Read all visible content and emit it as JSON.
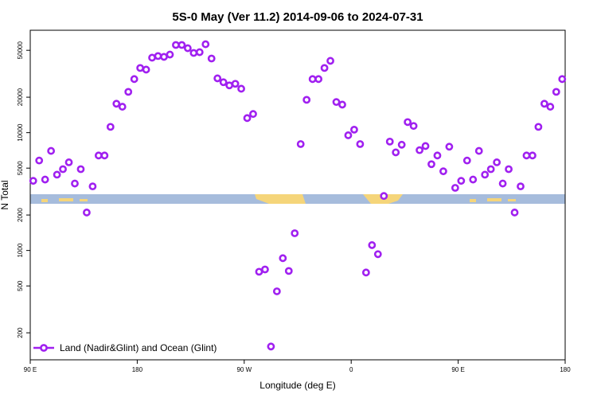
{
  "chart_data": {
    "type": "scatter",
    "title": "5S-0 May (Ver 11.2)   2014-09-06 to 2024-07-31",
    "x_label": "Longitude (deg E)",
    "y_label": "N Total",
    "yscale": "log",
    "legend_position": "bottom left",
    "xlim": [
      90,
      540
    ],
    "ylim": [
      118,
      74000
    ],
    "xticks": [
      {
        "value": 90,
        "label": "90 E"
      },
      180,
      {
        "value": 270,
        "label": "90 W"
      },
      {
        "value": 360,
        "label": "0"
      },
      {
        "value": 450,
        "label": "90 E"
      },
      {
        "value": 540,
        "label": "180"
      }
    ],
    "yticks": [
      200,
      500,
      1000,
      2000,
      5000,
      10000,
      20000,
      50000
    ],
    "series": [
      {
        "name": "Land (Nadir&Glint) and Ocean (Glint)",
        "color": "#a020f0",
        "x": [
          92.5,
          97.5,
          102.5,
          107.5,
          112.5,
          117.5,
          122.5,
          127.5,
          132.5,
          137.5,
          142.5,
          147.5,
          152.5,
          157.5,
          162.5,
          167.5,
          172.5,
          177.5,
          182.5,
          187.5,
          192.5,
          197.5,
          202.5,
          207.5,
          212.5,
          217.5,
          222.5,
          227.5,
          232.5,
          237.5,
          242.5,
          247.5,
          252.5,
          257.5,
          262.5,
          267.5,
          272.5,
          277.5,
          282.5,
          287.5,
          292.5,
          297.5,
          302.5,
          307.5,
          312.5,
          317.5,
          322.5,
          327.5,
          332.5,
          337.5,
          342.5,
          347.5,
          352.5,
          357.5,
          362.5,
          367.5,
          372.5,
          377.5,
          382.5,
          387.5,
          392.5,
          397.5,
          402.5,
          407.5,
          412.5,
          417.5,
          422.5,
          427.5,
          432.5,
          437.5,
          442.5,
          447.5,
          452.5,
          457.5,
          462.5,
          467.5,
          472.5,
          477.5,
          482.5,
          487.5,
          492.5,
          497.5,
          502.5,
          507.5,
          512.5,
          517.5,
          522.5,
          527.5,
          532.5,
          537.5
        ],
        "values": [
          3900,
          5800,
          4000,
          7000,
          4400,
          4900,
          5600,
          3700,
          4900,
          2100,
          3500,
          6400,
          6400,
          11200,
          17600,
          16600,
          22200,
          28500,
          35400,
          34300,
          43300,
          44700,
          44000,
          46000,
          55500,
          55500,
          52100,
          47500,
          48200,
          56300,
          42600,
          28900,
          26800,
          25200,
          26000,
          23600,
          13300,
          14400,
          660,
          690,
          153,
          450,
          860,
          670,
          1400,
          8000,
          19000,
          28500,
          28500,
          35400,
          40700,
          18200,
          17300,
          9500,
          10600,
          8000,
          650,
          1110,
          930,
          2900,
          8400,
          6800,
          7900,
          12300,
          11400,
          7100,
          7700,
          5400,
          6400,
          4700,
          7600,
          3400,
          3900,
          5800,
          4000,
          7000,
          4400,
          4900,
          5600,
          3700,
          4900,
          2100,
          3500,
          6400,
          6400,
          11200,
          17600,
          16600,
          22200,
          28500
        ]
      }
    ]
  }
}
